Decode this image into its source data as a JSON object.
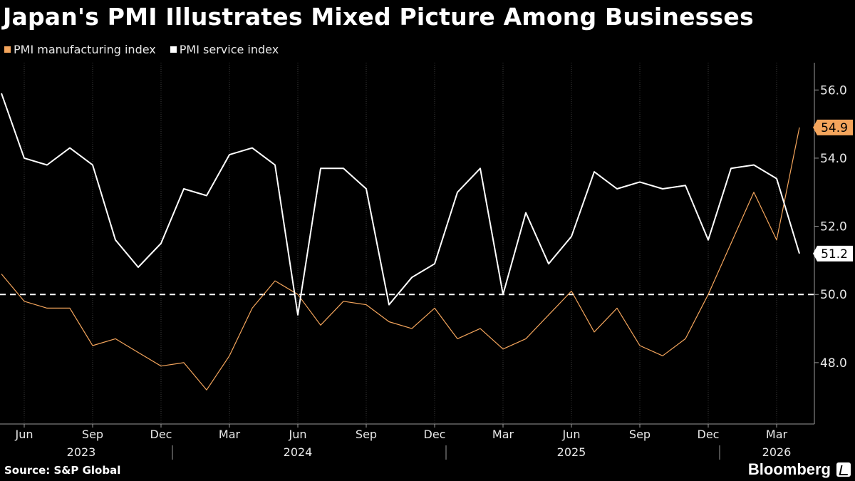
{
  "title": "Japan's PMI Illustrates Mixed Picture Among Businesses",
  "source": "Source: S&P Global",
  "brand": "Bloomberg",
  "colors": {
    "background": "#000000",
    "manufacturing": "#f4a55c",
    "service": "#ffffff",
    "axis": "#9a9a9a",
    "grid": "#3a3a3a"
  },
  "icons": [
    "bloomberg-logo-icon"
  ],
  "chart_data": {
    "type": "line",
    "title": "Japan's PMI Illustrates Mixed Picture Among Businesses",
    "legend_placement": "top-left",
    "grid": "vertical",
    "ylim": [
      46.2,
      56.8
    ],
    "y_ticks": [
      "48.0",
      "50.0",
      "52.0",
      "54.0",
      "56.0"
    ],
    "y_tick_values": [
      48,
      50,
      52,
      54,
      56
    ],
    "reference_line": {
      "value": 50.0,
      "style": "dashed"
    },
    "x": [
      "2023-05",
      "2023-06",
      "2023-07",
      "2023-08",
      "2023-09",
      "2023-10",
      "2023-11",
      "2023-12",
      "2024-01",
      "2024-02",
      "2024-03",
      "2024-04",
      "2024-05",
      "2024-06",
      "2024-07",
      "2024-08",
      "2024-09",
      "2024-10",
      "2024-11",
      "2024-12",
      "2025-01",
      "2025-02",
      "2025-03",
      "2025-04",
      "2025-05",
      "2025-06",
      "2025-07",
      "2025-08",
      "2025-09",
      "2025-10",
      "2025-11",
      "2025-12",
      "2026-01",
      "2026-02",
      "2026-03",
      "2026-04"
    ],
    "x_tick_labels": [
      {
        "label": "Jun",
        "index": 1
      },
      {
        "label": "Sep",
        "index": 4
      },
      {
        "label": "Dec",
        "index": 7
      },
      {
        "label": "Mar",
        "index": 10
      },
      {
        "label": "Jun",
        "index": 13
      },
      {
        "label": "Sep",
        "index": 16
      },
      {
        "label": "Dec",
        "index": 19
      },
      {
        "label": "Mar",
        "index": 22
      },
      {
        "label": "Jun",
        "index": 25
      },
      {
        "label": "Sep",
        "index": 28
      },
      {
        "label": "Dec",
        "index": 31
      },
      {
        "label": "Mar",
        "index": 34
      }
    ],
    "year_labels": [
      {
        "label": "2023",
        "index": 3.5
      },
      {
        "label": "2024",
        "index": 13
      },
      {
        "label": "2025",
        "index": 25
      },
      {
        "label": "2026",
        "index": 34
      }
    ],
    "year_separators": [
      7.5,
      19.5,
      31.5
    ],
    "series": [
      {
        "name": "PMI manufacturing index",
        "color": "#f4a55c",
        "values": [
          50.6,
          49.8,
          49.6,
          49.6,
          48.5,
          48.7,
          48.3,
          47.9,
          48.0,
          47.2,
          48.2,
          49.6,
          50.4,
          50.0,
          49.1,
          49.8,
          49.7,
          49.2,
          49.0,
          49.6,
          48.7,
          49.0,
          48.4,
          48.7,
          49.4,
          50.1,
          48.9,
          49.6,
          48.5,
          48.2,
          48.7,
          50.0,
          51.5,
          53.0,
          51.6,
          54.9
        ],
        "end_label": "54.9"
      },
      {
        "name": "PMI service index",
        "color": "#ffffff",
        "values": [
          55.9,
          54.0,
          53.8,
          54.3,
          53.8,
          51.6,
          50.8,
          51.5,
          53.1,
          52.9,
          54.1,
          54.3,
          53.8,
          49.4,
          53.7,
          53.7,
          53.1,
          49.7,
          50.5,
          50.9,
          53.0,
          53.7,
          50.0,
          52.4,
          50.9,
          51.7,
          53.6,
          53.1,
          53.3,
          53.1,
          53.2,
          51.6,
          53.7,
          53.8,
          53.4,
          51.2
        ],
        "end_label": "51.2"
      }
    ]
  }
}
